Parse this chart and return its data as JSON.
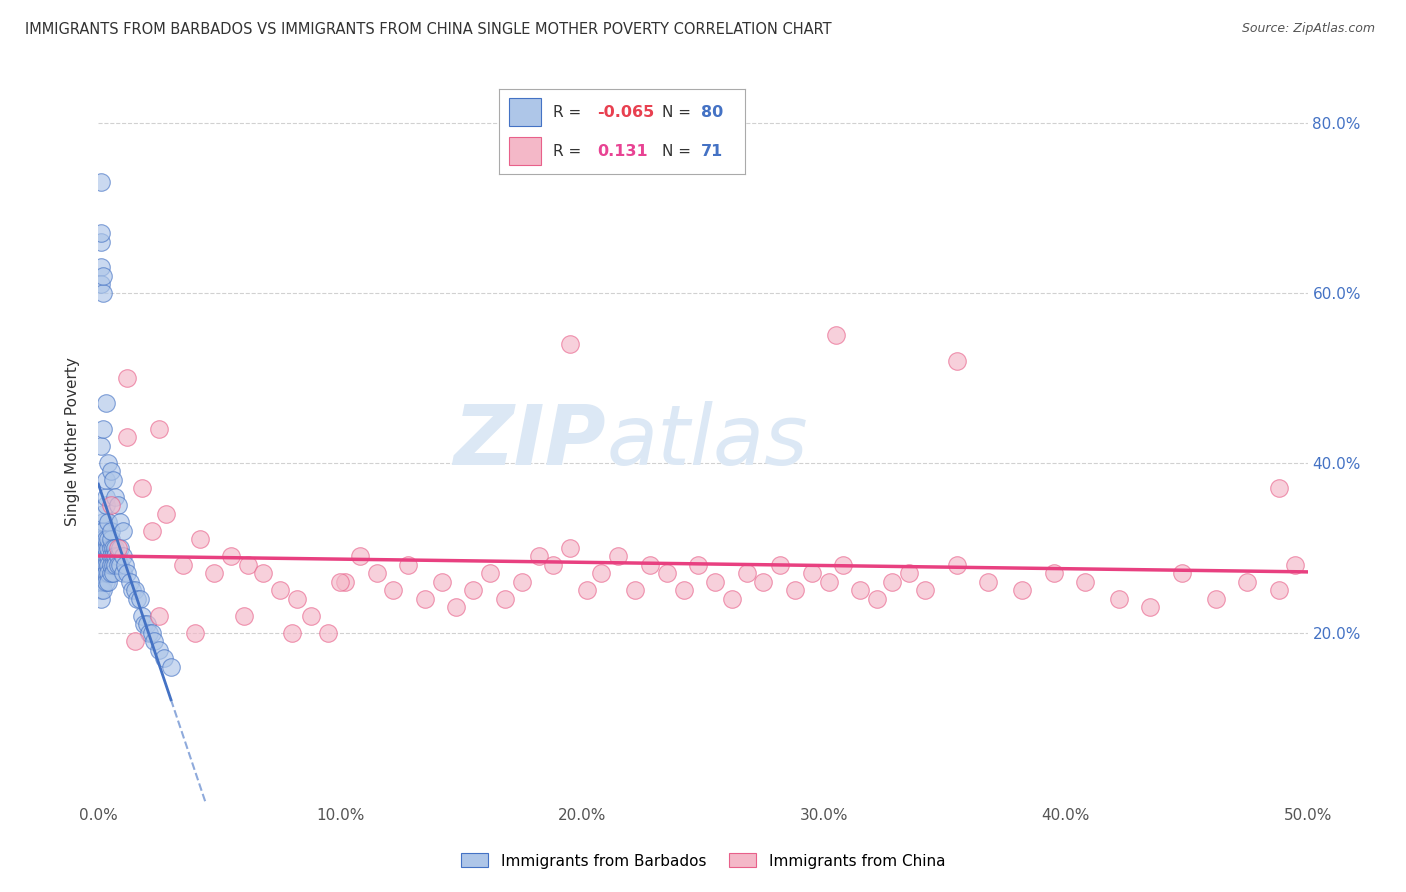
{
  "title": "IMMIGRANTS FROM BARBADOS VS IMMIGRANTS FROM CHINA SINGLE MOTHER POVERTY CORRELATION CHART",
  "source": "Source: ZipAtlas.com",
  "ylabel": "Single Mother Poverty",
  "xlim": [
    0.0,
    0.5
  ],
  "ylim": [
    0.0,
    0.85
  ],
  "xticks": [
    0.0,
    0.1,
    0.2,
    0.3,
    0.4,
    0.5
  ],
  "xtick_labels": [
    "0.0%",
    "10.0%",
    "20.0%",
    "30.0%",
    "40.0%",
    "50.0%"
  ],
  "yticks_right": [
    0.2,
    0.4,
    0.6,
    0.8
  ],
  "ytick_labels_right": [
    "20.0%",
    "40.0%",
    "60.0%",
    "80.0%"
  ],
  "R_barbados": -0.065,
  "N_barbados": 80,
  "R_china": 0.131,
  "N_china": 71,
  "color_barbados_fill": "#aec6e8",
  "color_barbados_edge": "#4472c4",
  "color_china_fill": "#f4b8c8",
  "color_china_edge": "#e8608a",
  "color_barbados_line": "#4472c4",
  "color_china_line": "#e84080",
  "watermark_color": "#dce8f5",
  "background_color": "#ffffff",
  "scatter_barbados_x": [
    0.001,
    0.001,
    0.001,
    0.001,
    0.001,
    0.001,
    0.001,
    0.001,
    0.001,
    0.002,
    0.002,
    0.002,
    0.002,
    0.002,
    0.002,
    0.002,
    0.002,
    0.002,
    0.002,
    0.003,
    0.003,
    0.003,
    0.003,
    0.003,
    0.003,
    0.003,
    0.003,
    0.003,
    0.004,
    0.004,
    0.004,
    0.004,
    0.004,
    0.004,
    0.004,
    0.005,
    0.005,
    0.005,
    0.005,
    0.005,
    0.005,
    0.006,
    0.006,
    0.006,
    0.006,
    0.007,
    0.007,
    0.007,
    0.008,
    0.008,
    0.009,
    0.009,
    0.01,
    0.01,
    0.011,
    0.012,
    0.013,
    0.014,
    0.015,
    0.016,
    0.017,
    0.018,
    0.019,
    0.02,
    0.021,
    0.022,
    0.023,
    0.025,
    0.027,
    0.03,
    0.001,
    0.002,
    0.003,
    0.004,
    0.005,
    0.006,
    0.007,
    0.008,
    0.009,
    0.01
  ],
  "scatter_barbados_y": [
    0.3,
    0.28,
    0.29,
    0.27,
    0.26,
    0.31,
    0.32,
    0.25,
    0.24,
    0.3,
    0.28,
    0.29,
    0.31,
    0.27,
    0.26,
    0.33,
    0.32,
    0.25,
    0.34,
    0.29,
    0.3,
    0.28,
    0.31,
    0.27,
    0.35,
    0.36,
    0.38,
    0.26,
    0.29,
    0.3,
    0.28,
    0.31,
    0.27,
    0.33,
    0.26,
    0.3,
    0.29,
    0.31,
    0.27,
    0.28,
    0.32,
    0.3,
    0.29,
    0.28,
    0.27,
    0.3,
    0.29,
    0.28,
    0.29,
    0.28,
    0.3,
    0.28,
    0.29,
    0.27,
    0.28,
    0.27,
    0.26,
    0.25,
    0.25,
    0.24,
    0.24,
    0.22,
    0.21,
    0.21,
    0.2,
    0.2,
    0.19,
    0.18,
    0.17,
    0.16,
    0.42,
    0.44,
    0.47,
    0.4,
    0.39,
    0.38,
    0.36,
    0.35,
    0.33,
    0.32
  ],
  "scatter_barbados_outliers_x": [
    0.001,
    0.001,
    0.001,
    0.001,
    0.001,
    0.002,
    0.002
  ],
  "scatter_barbados_outliers_y": [
    0.73,
    0.63,
    0.61,
    0.66,
    0.67,
    0.6,
    0.62
  ],
  "scatter_china_x": [
    0.005,
    0.008,
    0.012,
    0.018,
    0.022,
    0.028,
    0.035,
    0.042,
    0.048,
    0.055,
    0.062,
    0.068,
    0.075,
    0.082,
    0.088,
    0.095,
    0.102,
    0.108,
    0.115,
    0.122,
    0.128,
    0.135,
    0.142,
    0.148,
    0.155,
    0.162,
    0.168,
    0.175,
    0.182,
    0.188,
    0.195,
    0.202,
    0.208,
    0.215,
    0.222,
    0.228,
    0.235,
    0.242,
    0.248,
    0.255,
    0.262,
    0.268,
    0.275,
    0.282,
    0.288,
    0.295,
    0.302,
    0.308,
    0.315,
    0.322,
    0.328,
    0.335,
    0.342,
    0.355,
    0.368,
    0.382,
    0.395,
    0.408,
    0.422,
    0.435,
    0.448,
    0.462,
    0.475,
    0.488,
    0.495,
    0.015,
    0.025,
    0.04,
    0.06,
    0.08,
    0.1
  ],
  "scatter_china_y": [
    0.35,
    0.3,
    0.43,
    0.37,
    0.32,
    0.34,
    0.28,
    0.31,
    0.27,
    0.29,
    0.28,
    0.27,
    0.25,
    0.24,
    0.22,
    0.2,
    0.26,
    0.29,
    0.27,
    0.25,
    0.28,
    0.24,
    0.26,
    0.23,
    0.25,
    0.27,
    0.24,
    0.26,
    0.29,
    0.28,
    0.3,
    0.25,
    0.27,
    0.29,
    0.25,
    0.28,
    0.27,
    0.25,
    0.28,
    0.26,
    0.24,
    0.27,
    0.26,
    0.28,
    0.25,
    0.27,
    0.26,
    0.28,
    0.25,
    0.24,
    0.26,
    0.27,
    0.25,
    0.28,
    0.26,
    0.25,
    0.27,
    0.26,
    0.24,
    0.23,
    0.27,
    0.24,
    0.26,
    0.25,
    0.28,
    0.19,
    0.22,
    0.2,
    0.22,
    0.2,
    0.26
  ],
  "scatter_china_outliers_x": [
    0.195,
    0.305,
    0.355,
    0.488,
    0.012,
    0.025
  ],
  "scatter_china_outliers_y": [
    0.54,
    0.55,
    0.52,
    0.37,
    0.5,
    0.44
  ],
  "legend_R_barbados_color": "#e84050",
  "legend_N_color": "#4472c4",
  "legend_R_china_color": "#e84393",
  "legend_text_color": "#333333"
}
